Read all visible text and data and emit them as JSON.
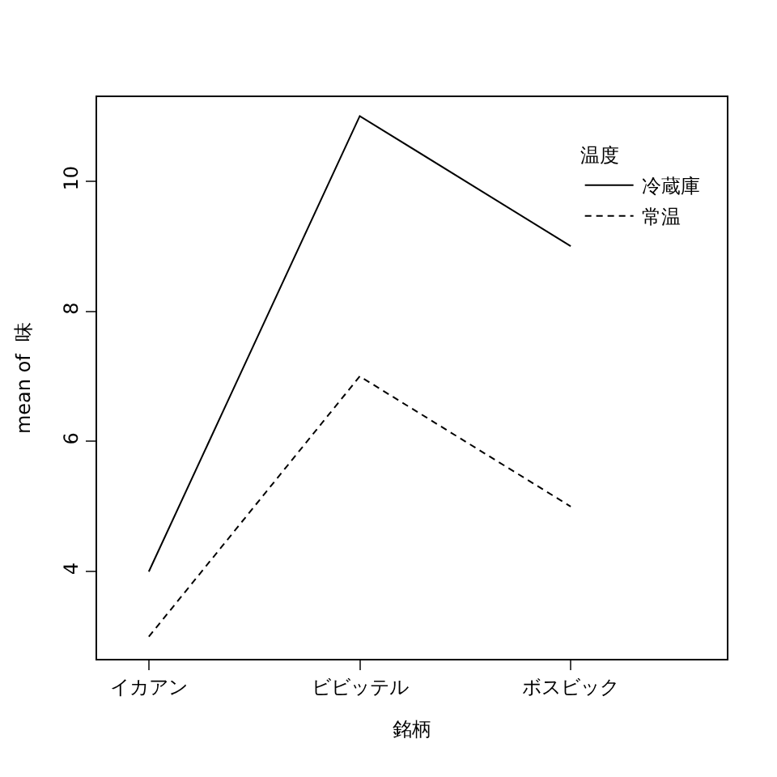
{
  "chart_data": {
    "type": "line",
    "xlabel": "銘柄",
    "ylabel": "mean of  味",
    "legend_title": "温度",
    "categories": [
      "イカアン",
      "ビビッテル",
      "ボスビック"
    ],
    "series": [
      {
        "name": "冷蔵庫",
        "color": "#000000",
        "values": [
          4,
          11,
          9
        ],
        "line_style": "solid"
      },
      {
        "name": "常温",
        "color": "#000000",
        "values": [
          3,
          7,
          5
        ],
        "line_style": "dashed"
      }
    ],
    "ylim": [
      2.66,
      11.29
    ],
    "yticks": [
      4,
      6,
      8,
      10
    ],
    "legend": "top right",
    "marker": "none"
  }
}
